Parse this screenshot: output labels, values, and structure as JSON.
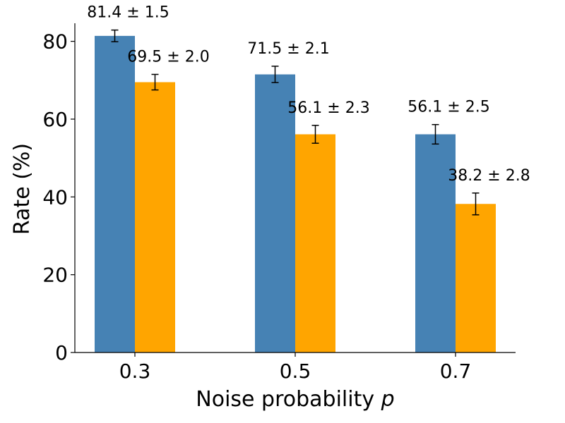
{
  "chart_data": {
    "type": "bar",
    "categories": [
      "0.3",
      "0.5",
      "0.7"
    ],
    "series": [
      {
        "color": "#4682b4",
        "values": [
          81.4,
          71.5,
          56.1
        ],
        "errors": [
          1.5,
          2.1,
          2.5
        ],
        "labels": [
          "81.4 ± 1.5",
          "71.5 ± 2.1",
          "56.1 ± 2.5"
        ]
      },
      {
        "color": "#ffa500",
        "values": [
          69.5,
          56.1,
          38.2
        ],
        "errors": [
          2.0,
          2.3,
          2.8
        ],
        "labels": [
          "69.5 ± 2.0",
          "56.1 ± 2.3",
          "38.2 ± 2.8"
        ]
      }
    ],
    "xlabel": "Noise probability",
    "xlabel_var": "p",
    "ylabel": "Rate (%)",
    "ylim": [
      0,
      87
    ],
    "yticks": [
      0,
      20,
      40,
      60,
      80
    ],
    "grid": false,
    "legend": "none"
  }
}
